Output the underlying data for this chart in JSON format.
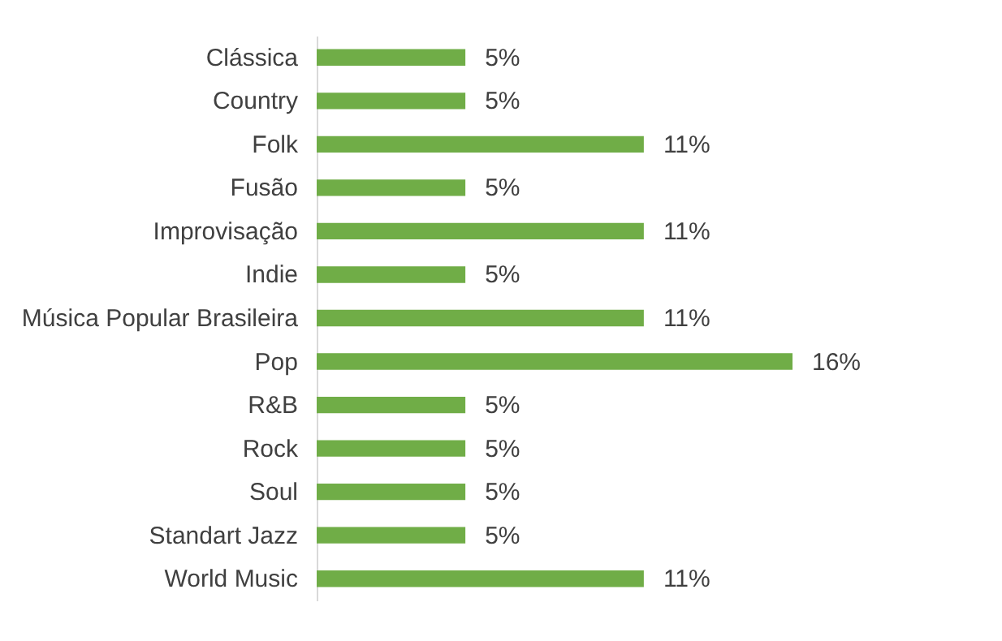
{
  "chart_data": {
    "type": "bar",
    "orientation": "horizontal",
    "categories": [
      "Clássica",
      "Country",
      "Folk",
      "Fusão",
      "Improvisação",
      "Indie",
      "Música Popular Brasileira",
      "Pop",
      "R&B",
      "Rock",
      "Soul",
      "Standart Jazz",
      "World Music"
    ],
    "values": [
      5,
      5,
      11,
      5,
      11,
      5,
      11,
      16,
      5,
      5,
      5,
      5,
      11
    ],
    "value_labels": [
      "5%",
      "5%",
      "11%",
      "5%",
      "11%",
      "5%",
      "11%",
      "16%",
      "5%",
      "5%",
      "5%",
      "5%",
      "11%"
    ],
    "color": "#70ad47",
    "tick_labels": "y"
  }
}
